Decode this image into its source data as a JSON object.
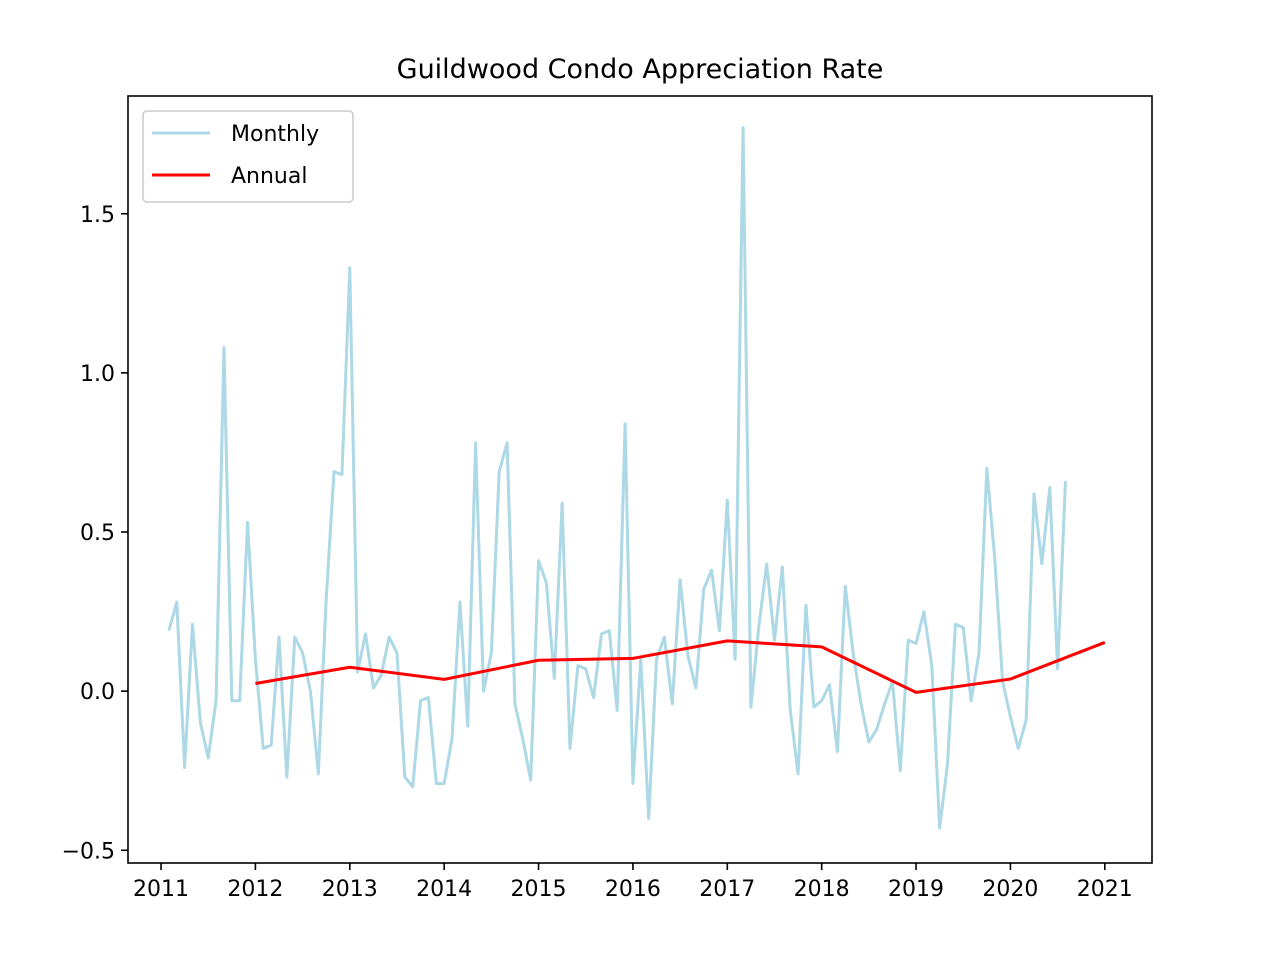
{
  "chart_data": {
    "type": "line",
    "title": "Guildwood Condo Appreciation Rate",
    "xlabel": "",
    "ylabel": "",
    "xlim": [
      2010.65,
      2021.5
    ],
    "ylim": [
      -0.54,
      1.87
    ],
    "x_ticks": [
      2011,
      2012,
      2013,
      2014,
      2015,
      2016,
      2017,
      2018,
      2019,
      2020,
      2021
    ],
    "x_tick_labels": [
      "2011",
      "2012",
      "2013",
      "2014",
      "2015",
      "2016",
      "2017",
      "2018",
      "2019",
      "2020",
      "2021"
    ],
    "y_ticks": [
      -0.5,
      0.0,
      0.5,
      1.0,
      1.5
    ],
    "y_tick_labels": [
      "−0.5",
      "0.0",
      "0.5",
      "1.0",
      "1.5"
    ],
    "grid": false,
    "legend_position": "upper-left",
    "series": [
      {
        "name": "Monthly",
        "color": "#add8e6",
        "x": [
          2011.083,
          2011.167,
          2011.25,
          2011.333,
          2011.417,
          2011.5,
          2011.583,
          2011.667,
          2011.75,
          2011.833,
          2011.917,
          2012.0,
          2012.083,
          2012.167,
          2012.25,
          2012.333,
          2012.417,
          2012.5,
          2012.583,
          2012.667,
          2012.75,
          2012.833,
          2012.917,
          2013.0,
          2013.083,
          2013.167,
          2013.25,
          2013.333,
          2013.417,
          2013.5,
          2013.583,
          2013.667,
          2013.75,
          2013.833,
          2013.917,
          2014.0,
          2014.083,
          2014.167,
          2014.25,
          2014.333,
          2014.417,
          2014.5,
          2014.583,
          2014.667,
          2014.75,
          2014.833,
          2014.917,
          2015.0,
          2015.083,
          2015.167,
          2015.25,
          2015.333,
          2015.417,
          2015.5,
          2015.583,
          2015.667,
          2015.75,
          2015.833,
          2015.917,
          2016.0,
          2016.083,
          2016.167,
          2016.25,
          2016.333,
          2016.417,
          2016.5,
          2016.583,
          2016.667,
          2016.75,
          2016.833,
          2016.917,
          2017.0,
          2017.083,
          2017.167,
          2017.25,
          2017.333,
          2017.417,
          2017.5,
          2017.583,
          2017.667,
          2017.75,
          2017.833,
          2017.917,
          2018.0,
          2018.083,
          2018.167,
          2018.25,
          2018.333,
          2018.417,
          2018.5,
          2018.583,
          2018.667,
          2018.75,
          2018.833,
          2018.917,
          2019.0,
          2019.083,
          2019.167,
          2019.25,
          2019.333,
          2019.417,
          2019.5,
          2019.583,
          2019.667,
          2019.75,
          2019.833,
          2019.917,
          2020.0,
          2020.083,
          2020.167,
          2020.25,
          2020.333,
          2020.417,
          2020.5,
          2020.583
        ],
        "values": [
          0.19,
          0.28,
          -0.24,
          0.21,
          -0.1,
          -0.21,
          -0.03,
          1.08,
          -0.03,
          -0.03,
          0.53,
          0.1,
          -0.18,
          -0.17,
          0.17,
          -0.27,
          0.17,
          0.12,
          0.0,
          -0.26,
          0.29,
          0.69,
          0.68,
          1.33,
          0.06,
          0.18,
          0.01,
          0.05,
          0.17,
          0.12,
          -0.27,
          -0.3,
          -0.03,
          -0.02,
          -0.29,
          -0.29,
          -0.15,
          0.28,
          -0.11,
          0.78,
          0.0,
          0.12,
          0.69,
          0.78,
          -0.04,
          -0.15,
          -0.28,
          0.41,
          0.34,
          0.04,
          0.59,
          -0.18,
          0.08,
          0.07,
          -0.02,
          0.18,
          0.19,
          -0.06,
          0.84,
          -0.29,
          0.1,
          -0.4,
          0.1,
          0.17,
          -0.04,
          0.35,
          0.11,
          0.01,
          0.32,
          0.38,
          0.19,
          0.6,
          0.1,
          1.77,
          -0.05,
          0.2,
          0.4,
          0.16,
          0.39,
          -0.06,
          -0.26,
          0.27,
          -0.05,
          -0.03,
          0.02,
          -0.19,
          0.33,
          0.12,
          -0.04,
          -0.16,
          -0.12,
          -0.04,
          0.03,
          -0.25,
          0.16,
          0.15,
          0.25,
          0.08,
          -0.43,
          -0.23,
          0.21,
          0.2,
          -0.03,
          0.12,
          0.7,
          0.42,
          0.03,
          -0.08,
          -0.18,
          -0.09,
          0.62,
          0.4,
          0.64,
          0.07,
          0.66
        ]
      },
      {
        "name": "Annual",
        "color": "#ff0000",
        "x": [
          2012,
          2013,
          2014,
          2015,
          2016,
          2017,
          2018,
          2019,
          2020,
          2021
        ],
        "values": [
          0.024,
          0.075,
          0.037,
          0.097,
          0.103,
          0.158,
          0.139,
          -0.004,
          0.038,
          0.153
        ]
      }
    ]
  }
}
